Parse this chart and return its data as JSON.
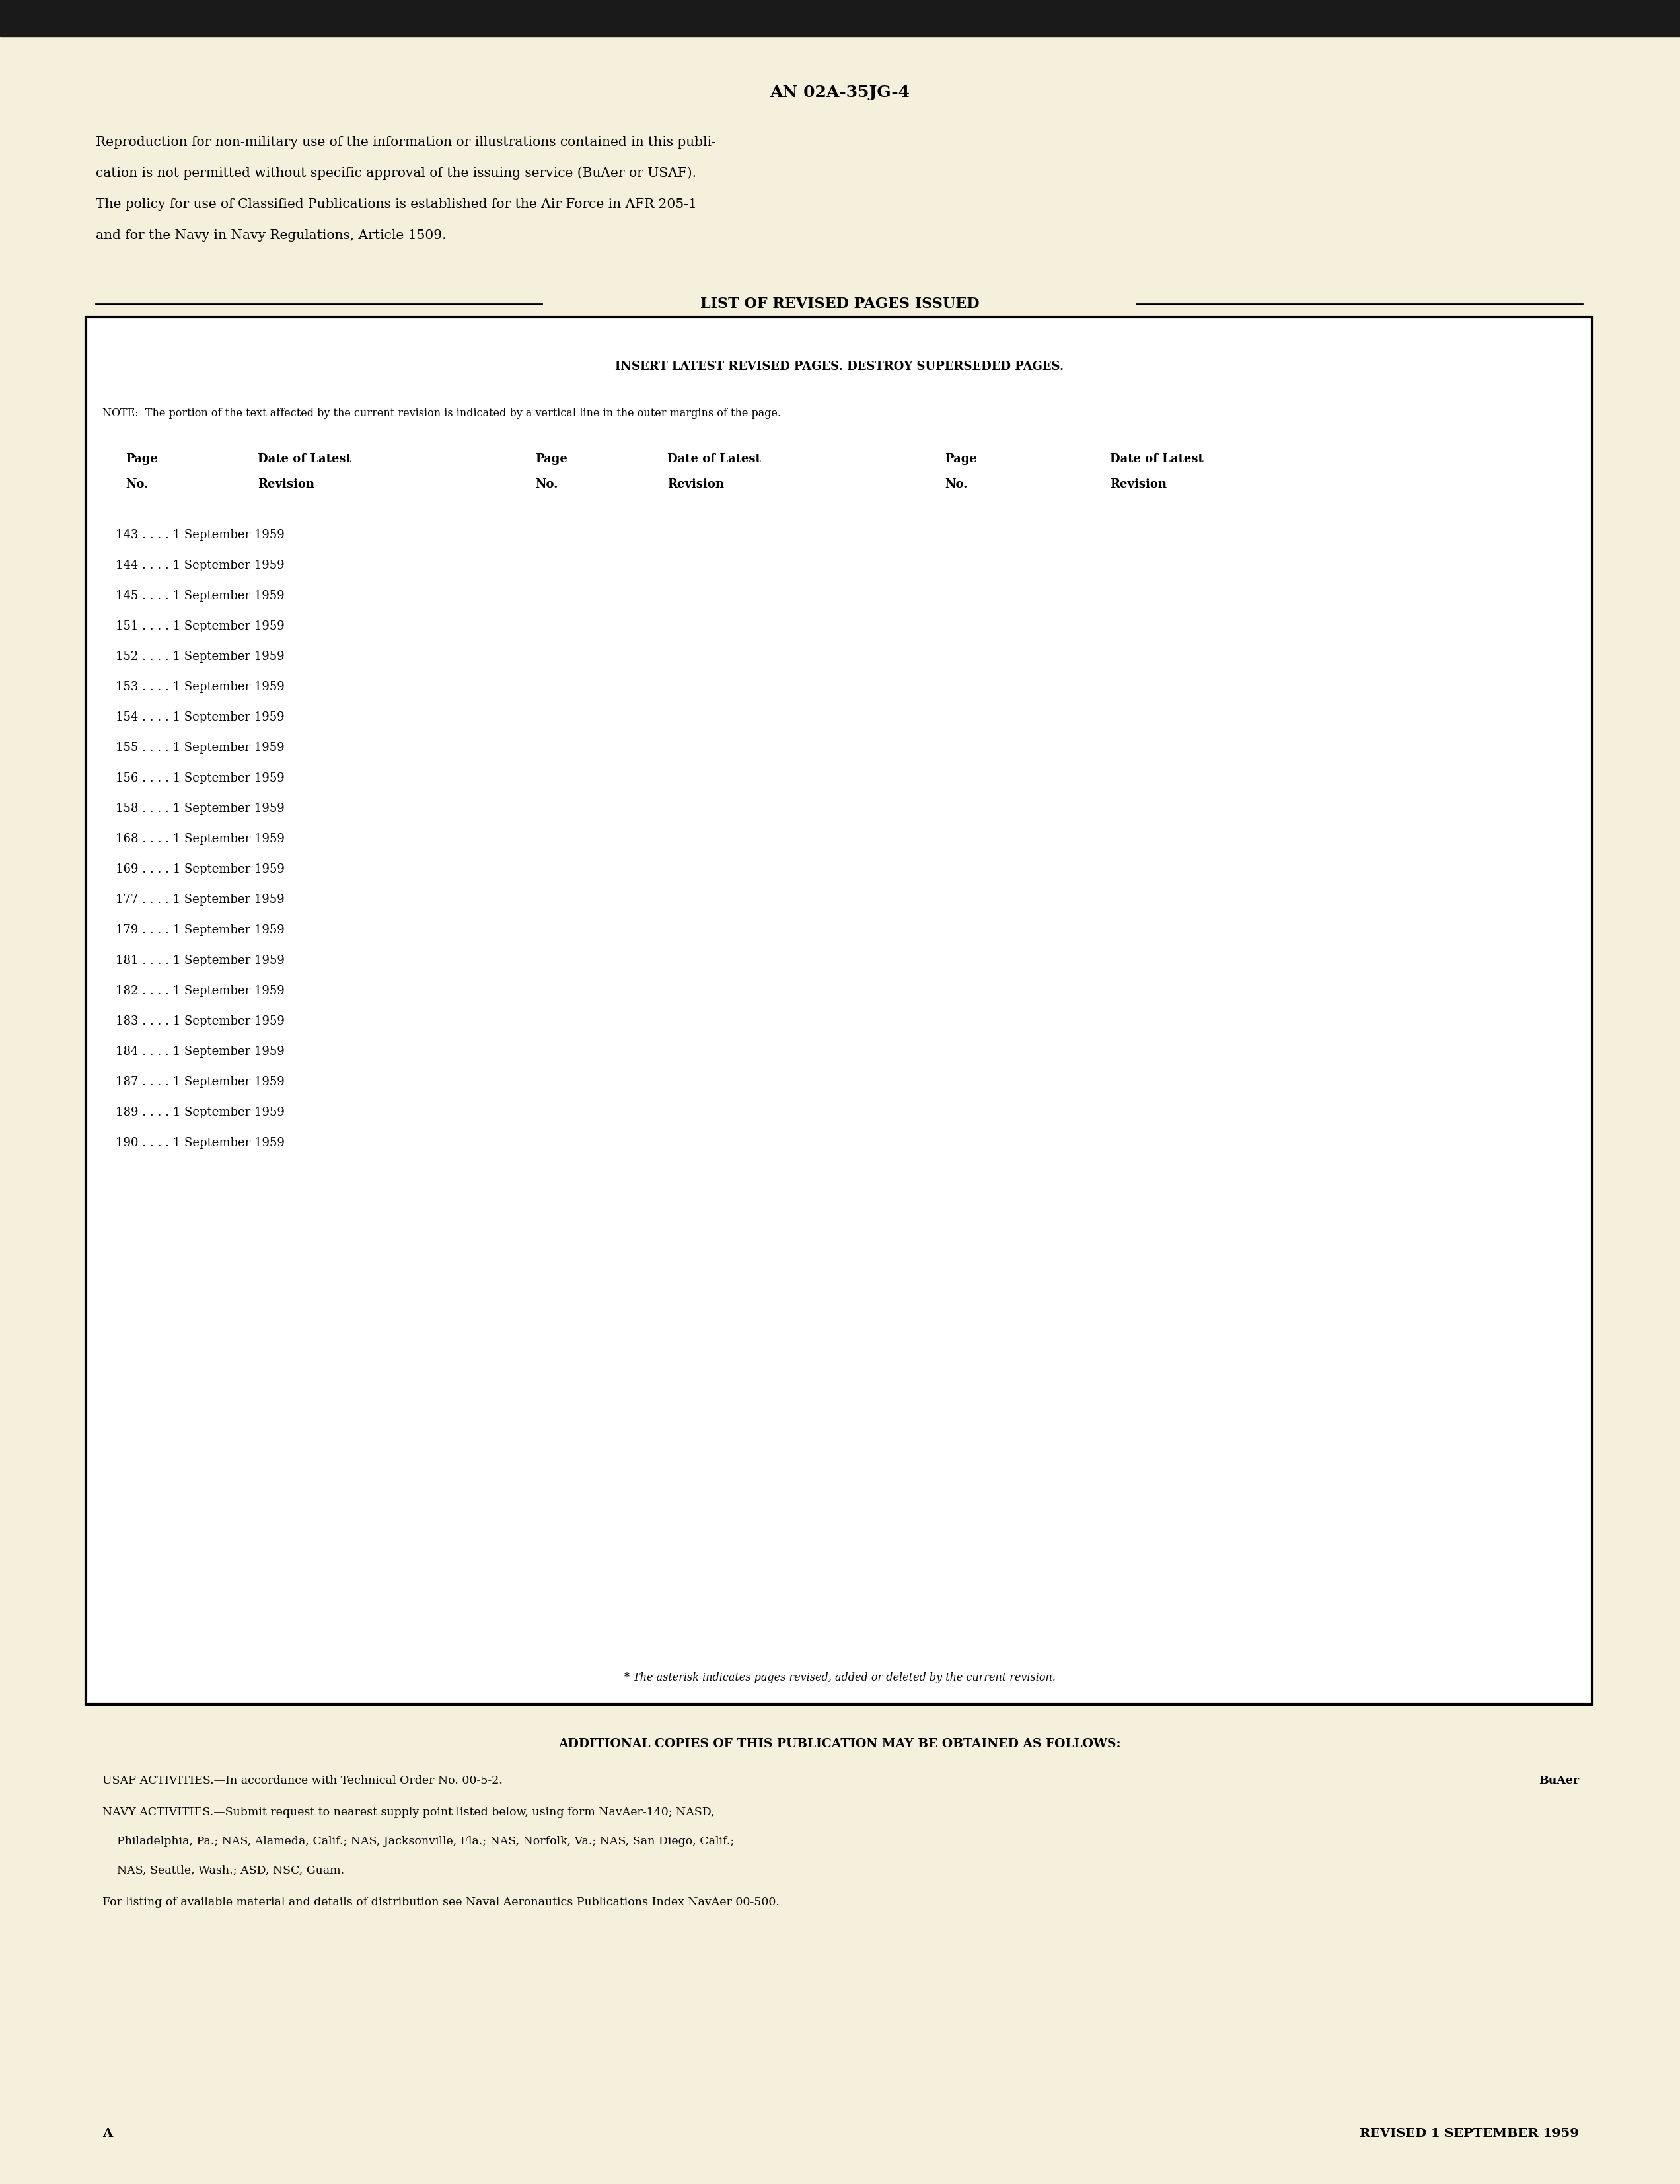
{
  "bg_color": "#f5f0dc",
  "top_bar_color": "#1a1a1a",
  "page_title": "AN 02A-35JG-4",
  "intro_text": [
    "Reproduction for non-military use of the information or illustrations contained in this publi-",
    "cation is not permitted without specific approval of the issuing service (BuAer or USAF).",
    "The policy for use of Classified Publications is established for the Air Force in AFR 205-1",
    "and for the Navy in Navy Regulations, Article 1509."
  ],
  "list_title": "LIST OF REVISED PAGES ISSUED",
  "box_subtitle": "INSERT LATEST REVISED PAGES. DESTROY SUPERSEDED PAGES.",
  "note_text": "NOTE:  The portion of the text affected by the current revision is indicated by a vertical line in the outer margins of the page.",
  "col_headers": [
    [
      "Page",
      "No."
    ],
    [
      "Date of Latest",
      "Revision"
    ],
    [
      "Page",
      "No."
    ],
    [
      "Date of Latest",
      "Revision"
    ],
    [
      "Page",
      "No."
    ],
    [
      "Date of Latest",
      "Revision"
    ]
  ],
  "page_entries": [
    "143 . . . . 1 September 1959",
    "144 . . . . 1 September 1959",
    "145 . . . . 1 September 1959",
    "151 . . . . 1 September 1959",
    "152 . . . . 1 September 1959",
    "153 . . . . 1 September 1959",
    "154 . . . . 1 September 1959",
    "155 . . . . 1 September 1959",
    "156 . . . . 1 September 1959",
    "158 . . . . 1 September 1959",
    "168 . . . . 1 September 1959",
    "169 . . . . 1 September 1959",
    "177 . . . . 1 September 1959",
    "179 . . . . 1 September 1959",
    "181 . . . . 1 September 1959",
    "182 . . . . 1 September 1959",
    "183 . . . . 1 September 1959",
    "184 . . . . 1 September 1959",
    "187 . . . . 1 September 1959",
    "189 . . . . 1 September 1959",
    "190 . . . . 1 September 1959"
  ],
  "footnote": "* The asterisk indicates pages revised, added or deleted by the current revision.",
  "bottom_bold": "ADDITIONAL COPIES OF THIS PUBLICATION MAY BE OBTAINED AS FOLLOWS:",
  "usaf_line": "USAF ACTIVITIES.—In accordance with Technical Order No. 00-5-2.",
  "buaer_label": "BuAer",
  "navy_line1": "NAVY ACTIVITIES.—Submit request to nearest supply point listed below, using form NavAer-140; NASD,",
  "navy_line2": "    Philadelphia, Pa.; NAS, Alameda, Calif.; NAS, Jacksonville, Fla.; NAS, Norfolk, Va.; NAS, San Diego, Calif.;",
  "navy_line3": "    NAS, Seattle, Wash.; ASD, NSC, Guam.",
  "listing_line": "For listing of available material and details of distribution see Naval Aeronautics Publications Index NavAer 00-500.",
  "bottom_left": "A",
  "bottom_right": "REVISED 1 SEPTEMBER 1959"
}
